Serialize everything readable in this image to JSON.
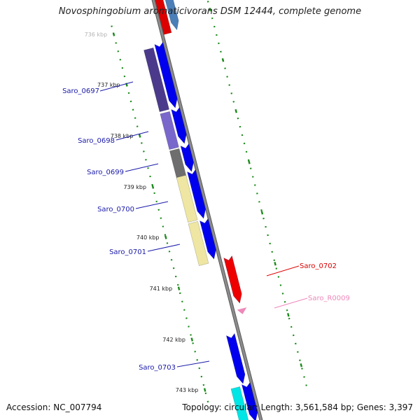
{
  "title": "Novosphingobium aromaticivorans DSM 12444, complete genome",
  "footer": {
    "accession": "Accession: NC_007794",
    "summary": "Topology: circular; Length: 3,561,584 bp; Genes: 3,397"
  },
  "colors": {
    "backbone": "#8c8c8c",
    "backbone_edge": "#5a5a5a",
    "cds_arrow": "#0000ee",
    "tick": "#1a8a1a",
    "label_blue": "#1a1aaa",
    "label_red": "#dd0000",
    "label_pink": "#ee88bb"
  },
  "scale": {
    "ticks": [
      "736 kbp",
      "737 kbp",
      "738 kbp",
      "739 kbp",
      "740 kbp",
      "741 kbp",
      "742 kbp",
      "743 kbp"
    ]
  },
  "genes": [
    {
      "label": "Saro_0697",
      "color": "#4b3a8c",
      "strand": "forward"
    },
    {
      "label": "Saro_0698",
      "color": "#7a67cc",
      "strand": "forward"
    },
    {
      "label": "Saro_0699",
      "color": "#6e6e6e",
      "strand": "forward"
    },
    {
      "label": "Saro_0700",
      "color": "#eee6a2",
      "strand": "forward"
    },
    {
      "label": "Saro_0701",
      "color": "#eee6a2",
      "strand": "forward"
    },
    {
      "label": "Saro_0702",
      "color": "#ee0000",
      "strand": "reverse"
    },
    {
      "label": "Saro_R0009",
      "color": "#ee88bb",
      "strand": "reverse"
    },
    {
      "label": "Saro_0703",
      "color": "#0000ee",
      "strand": "forward"
    }
  ]
}
